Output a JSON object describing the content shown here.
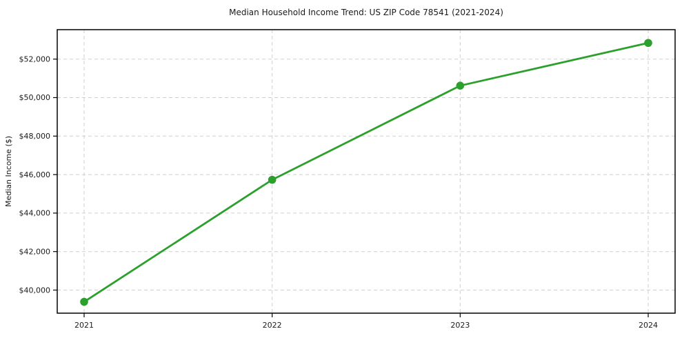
{
  "chart_data": {
    "type": "line",
    "title": "Median Household Income Trend: US ZIP Code 78541 (2021-2024)",
    "xlabel": "",
    "ylabel": "Median Income ($)",
    "x": [
      "2021",
      "2022",
      "2023",
      "2024"
    ],
    "series": [
      {
        "name": "Median Household Income",
        "values": [
          39390,
          45730,
          50620,
          52840
        ]
      }
    ],
    "y_ticks": [
      40000,
      42000,
      44000,
      46000,
      48000,
      50000,
      52000
    ],
    "y_tick_labels": [
      "$40,000",
      "$42,000",
      "$44,000",
      "$46,000",
      "$48,000",
      "$50,000",
      "$52,000"
    ],
    "ylim": [
      38800,
      53530
    ],
    "grid": true,
    "grid_style": "dashed",
    "legend": "none",
    "colors": {
      "line": "#2ca02c",
      "marker": "#2ca02c",
      "grid": "#cfcfcf",
      "axis": "#000000",
      "text": "#1a1a1a",
      "background": "#ffffff"
    }
  }
}
